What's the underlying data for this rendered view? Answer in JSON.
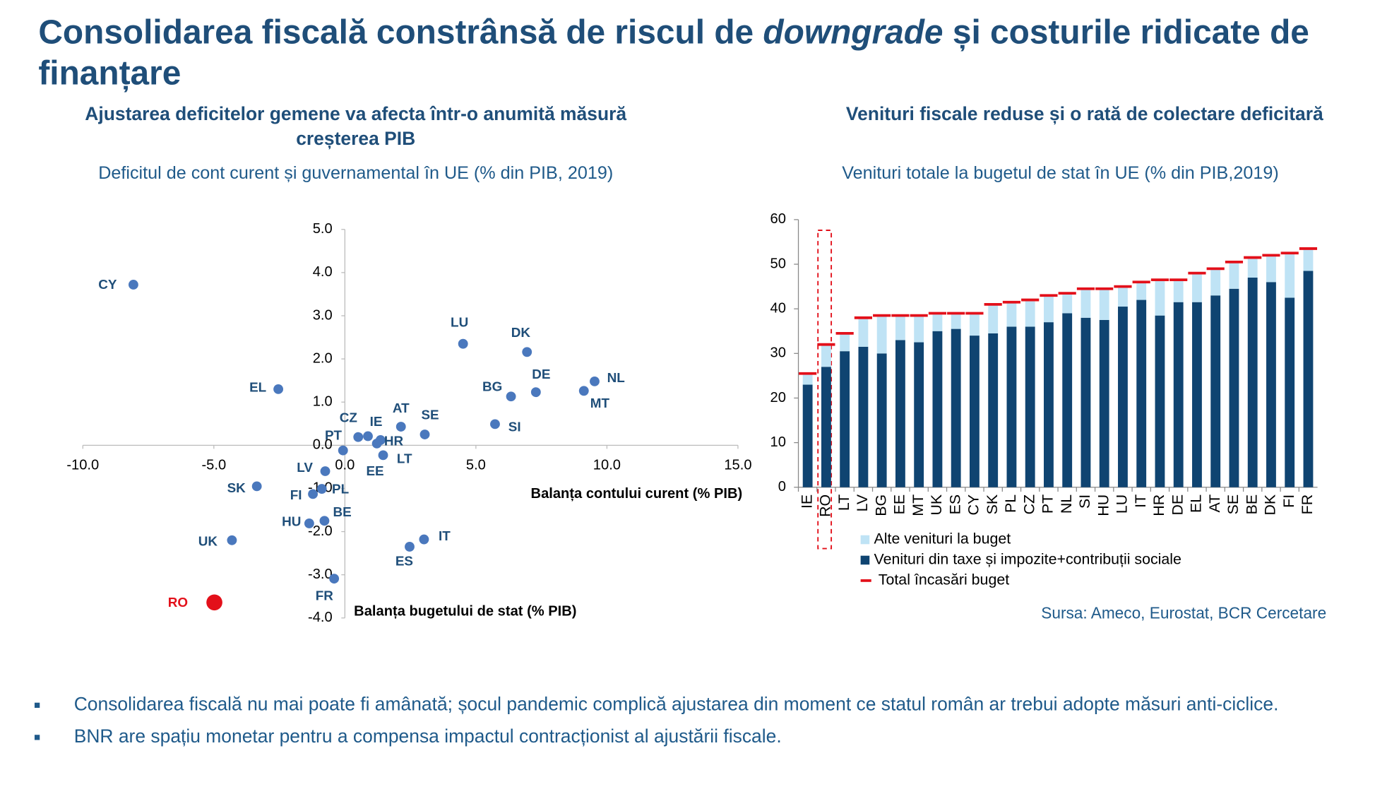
{
  "title": [
    "Consolidarea fiscală constrânsă de riscul de ",
    "downgrade",
    " și costurile ridicate de finanțare"
  ],
  "chart_data": [
    {
      "type": "scatter",
      "title": "Ajustarea deficitelor gemene va afecta într-o anumită măsură creșterea PIB",
      "subtitle": "Deficitul de cont curent și guvernamental în UE (% din PIB, 2019)",
      "xlabel": "Balanța contului curent (% PIB)",
      "ylabel": "Balanța bugetului de stat (% PIB)",
      "labels": [
        "CY",
        "EL",
        "LU",
        "DK",
        "DE",
        "NL",
        "MT",
        "BG",
        "SI",
        "AT",
        "SE",
        "PT",
        "CZ",
        "IE",
        "HR",
        "EE",
        "LT",
        "LV",
        "SK",
        "FI",
        "PL",
        "BE",
        "HU",
        "UK",
        "IT",
        "ES",
        "FR",
        "RO"
      ],
      "x": [
        -8.07,
        -2.54,
        4.51,
        6.95,
        7.29,
        9.53,
        9.12,
        6.34,
        5.73,
        2.14,
        3.05,
        0.51,
        0.88,
        1.36,
        1.22,
        -0.07,
        1.46,
        -0.75,
        -3.36,
        -1.22,
        -0.88,
        -0.78,
        -1.36,
        -4.31,
        3.02,
        2.47,
        -0.41,
        -4.98
      ],
      "y": [
        3.72,
        1.3,
        2.35,
        2.16,
        1.23,
        1.48,
        1.26,
        1.13,
        0.49,
        0.43,
        0.25,
        0.19,
        0.21,
        0.12,
        0.04,
        -0.12,
        -0.23,
        -0.6,
        -0.95,
        -1.13,
        -1.01,
        -1.75,
        -1.81,
        -2.2,
        -2.18,
        -2.35,
        -3.09,
        -3.64
      ],
      "colors": [
        "#4a78bd",
        "#4a78bd",
        "#4a78bd",
        "#4a78bd",
        "#4a78bd",
        "#4a78bd",
        "#4a78bd",
        "#4a78bd",
        "#4a78bd",
        "#4a78bd",
        "#4a78bd",
        "#4a78bd",
        "#4a78bd",
        "#4a78bd",
        "#4a78bd",
        "#4a78bd",
        "#4a78bd",
        "#4a78bd",
        "#4a78bd",
        "#4a78bd",
        "#4a78bd",
        "#4a78bd",
        "#4a78bd",
        "#4a78bd",
        "#4a78bd",
        "#4a78bd",
        "#4a78bd",
        "#e3101a"
      ],
      "xlim": [
        -10,
        15
      ],
      "ylim": [
        -4,
        5
      ],
      "xticks": [
        {
          "value": -10,
          "label": "-10.0"
        },
        {
          "value": -5,
          "label": "-5.0"
        },
        {
          "value": 0,
          "label": "0.0"
        },
        {
          "value": 5,
          "label": "5.0"
        },
        {
          "value": 10,
          "label": "10.0"
        },
        {
          "value": 15,
          "label": "15.0"
        }
      ],
      "yticks": [
        {
          "value": -4,
          "label": "-4.0"
        },
        {
          "value": -3,
          "label": "-3.0"
        },
        {
          "value": -2,
          "label": "-2.0"
        },
        {
          "value": -1,
          "label": "-1.0"
        },
        {
          "value": 0,
          "label": "0.0"
        },
        {
          "value": 1,
          "label": "1.0"
        },
        {
          "value": 2,
          "label": "2.0"
        },
        {
          "value": 3,
          "label": "3.0"
        },
        {
          "value": 4,
          "label": "4.0"
        },
        {
          "value": 5,
          "label": "5.0"
        }
      ]
    },
    {
      "type": "bar",
      "stacked": true,
      "title": "Venituri fiscale reduse și o rată de colectare deficitară",
      "subtitle": "Venituri totale la bugetul de stat în UE (% din PIB,2019)",
      "categories": [
        "IE",
        "RO",
        "LT",
        "LV",
        "BG",
        "EE",
        "MT",
        "UK",
        "ES",
        "CY",
        "SK",
        "PL",
        "CZ",
        "PT",
        "NL",
        "SI",
        "HU",
        "LU",
        "IT",
        "HR",
        "DE",
        "EL",
        "AT",
        "SE",
        "BE",
        "DK",
        "FI",
        "FR"
      ],
      "series": [
        {
          "name": "Alte venituri la buget",
          "color": "#bfe3f5",
          "stack": true,
          "values": [
            2.5,
            5,
            4,
            6.5,
            8.5,
            5.5,
            6,
            4,
            3.5,
            5,
            6.5,
            5.5,
            6,
            6,
            4.5,
            6.5,
            7,
            4.5,
            4,
            8,
            5,
            6.5,
            6,
            6,
            4.5,
            6,
            10,
            5
          ]
        },
        {
          "name": "Venituri din taxe și impozite+contribuții sociale",
          "color": "#0f4471",
          "stack": true,
          "values": [
            23,
            27,
            30.5,
            31.5,
            30,
            33,
            32.5,
            35,
            35.5,
            34,
            34.5,
            36,
            36,
            37,
            39,
            38,
            37.5,
            40.5,
            42,
            38.5,
            41.5,
            41.5,
            43,
            44.5,
            47,
            46,
            42.5,
            48.5
          ]
        },
        {
          "name": "Total încasări buget",
          "color": "#e3101a",
          "style": "dash",
          "values": [
            25.5,
            32,
            34.5,
            38,
            38.5,
            38.5,
            38.5,
            39,
            39,
            39,
            41,
            41.5,
            42,
            43,
            43.5,
            44.5,
            44.5,
            45,
            46,
            46.5,
            46.5,
            48,
            49,
            50.5,
            51.5,
            52,
            52.5,
            53.5
          ]
        }
      ],
      "ylim": [
        0,
        60
      ],
      "yticks": [
        0,
        10,
        20,
        30,
        40,
        50,
        60
      ],
      "source": "Sursa: Ameco, Eurostat, BCR Cercetare"
    }
  ],
  "bullets": [
    "Consolidarea fiscală nu mai poate fi amânată; șocul pandemic complică ajustarea din moment ce statul român ar trebui adopte măsuri anti-ciclice.",
    "BNR are spațiu monetar pentru a compensa impactul contracționist al ajustării fiscale."
  ]
}
